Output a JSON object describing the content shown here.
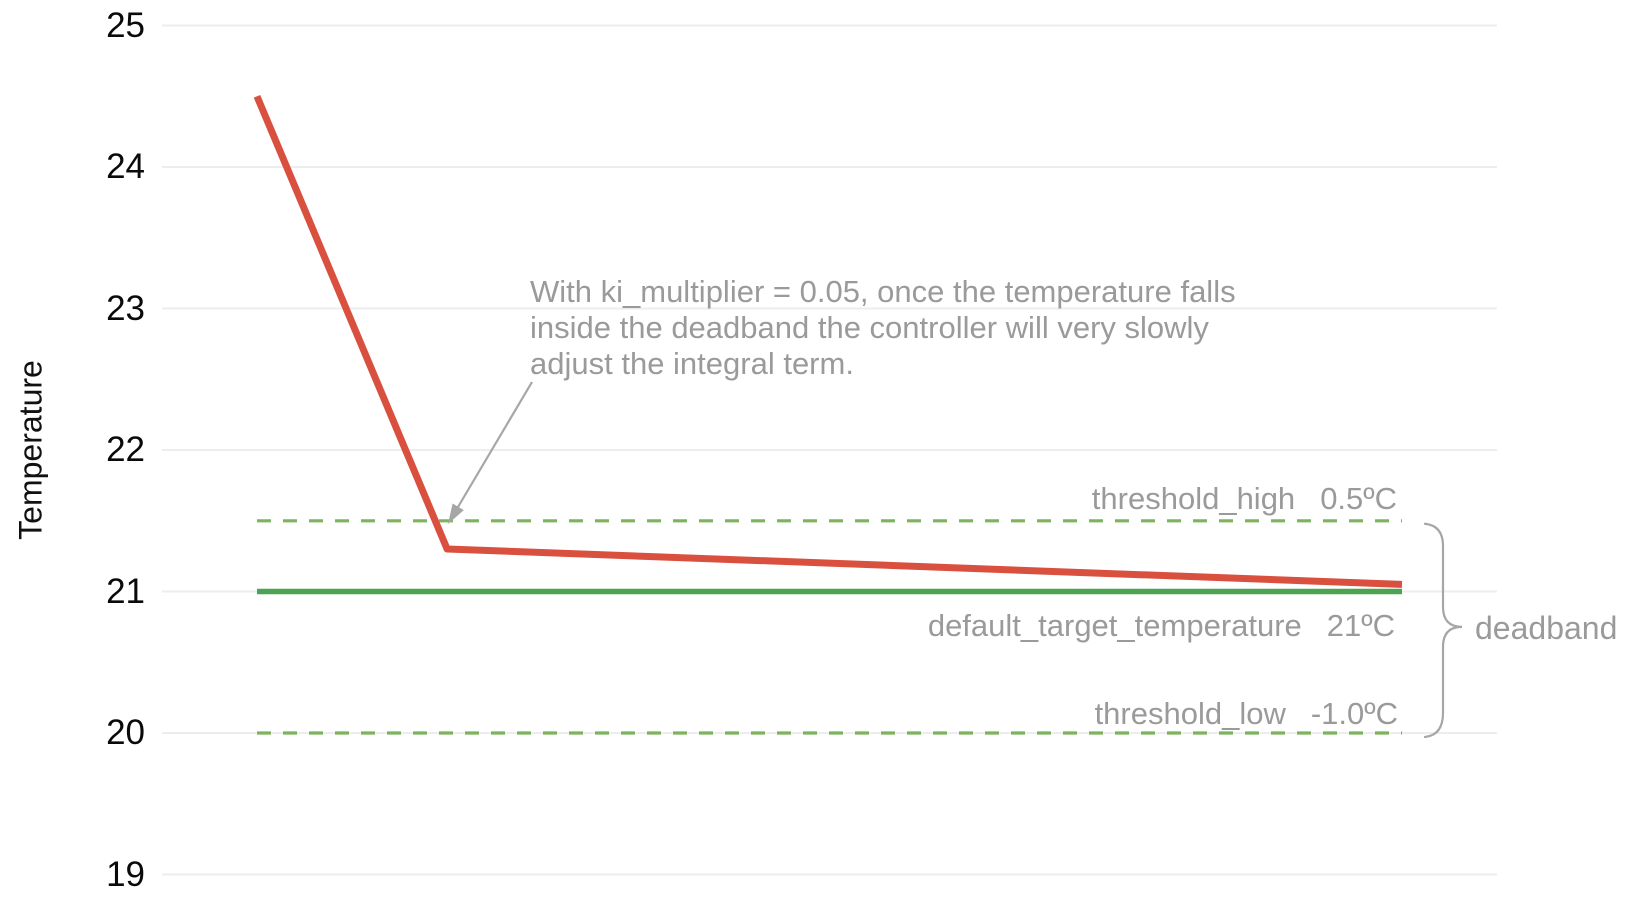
{
  "ylabel": "Temperature",
  "annotation": {
    "lines": [
      "With ki_multiplier = 0.05, once the temperature falls",
      "inside the deadband the controller will very slowly",
      "adjust the integral term."
    ]
  },
  "line_labels": {
    "threshold_high": {
      "name": "threshold_high",
      "value": "0.5ºC"
    },
    "default_target": {
      "name": "default_target_temperature",
      "value": "21ºC"
    },
    "threshold_low": {
      "name": "threshold_low",
      "value": "-1.0ºC"
    }
  },
  "deadband_label": "deadband",
  "colors": {
    "temperature_line": "#D9503F",
    "target_line": "#4CA453",
    "threshold_line": "#7CB45E",
    "label_text": "#9A9A9A",
    "tick_text": "#0A0A0A",
    "gridline": "#EDEDED",
    "arrow": "#A6A6A6"
  },
  "chart_data": {
    "type": "line",
    "title": "",
    "xlabel": "",
    "ylabel": "Temperature",
    "y_ticks": [
      25,
      24,
      23,
      22,
      21,
      20,
      19
    ],
    "ylim": [
      18.8,
      25.2
    ],
    "grid": true,
    "x_axis_labels": false,
    "x_normalized": true,
    "series": [
      {
        "name": "temperature",
        "color": "#D9503F",
        "style": "solid",
        "points": [
          {
            "x": 0,
            "y": 24.5
          },
          {
            "x": 0.166,
            "y": 21.3
          },
          {
            "x": 1,
            "y": 21.05
          }
        ]
      },
      {
        "name": "default_target_temperature",
        "color": "#4CA453",
        "style": "solid",
        "value": 21,
        "points": [
          {
            "x": 0,
            "y": 21
          },
          {
            "x": 1,
            "y": 21
          }
        ]
      },
      {
        "name": "threshold_high",
        "color": "#7CB45E",
        "style": "dashed",
        "value": 21.5,
        "points": [
          {
            "x": 0,
            "y": 21.5
          },
          {
            "x": 1,
            "y": 21.5
          }
        ]
      },
      {
        "name": "threshold_low",
        "color": "#7CB45E",
        "style": "dashed",
        "value": 20,
        "points": [
          {
            "x": 0,
            "y": 20
          },
          {
            "x": 1,
            "y": 20
          }
        ]
      }
    ],
    "annotations": [
      {
        "text": "With ki_multiplier = 0.05, once the temperature falls inside the deadband the controller will very slowly adjust the integral term.",
        "arrow_points_to": {
          "x": 0.166,
          "y": 21.5
        }
      },
      {
        "text": "deadband",
        "brace_from_y": 21.5,
        "brace_to_y": 20
      }
    ]
  }
}
